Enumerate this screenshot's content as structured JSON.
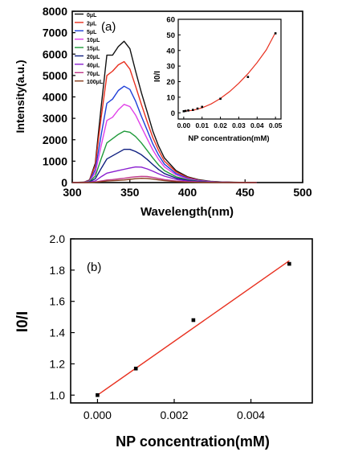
{
  "chart_data": [
    {
      "id": "a",
      "type": "line",
      "panel_label": "(a)",
      "xlabel": "Wavelength(nm)",
      "ylabel": "Intensity(a.u.)",
      "xlim": [
        300,
        500
      ],
      "ylim": [
        0,
        8000
      ],
      "x_ticks": [
        "300",
        "350",
        "400",
        "450",
        "500"
      ],
      "y_ticks": [
        "0",
        "1000",
        "2000",
        "3000",
        "4000",
        "5000",
        "6000",
        "7000",
        "8000"
      ],
      "legend_position": "top-left",
      "x": [
        300,
        310,
        315,
        320,
        325,
        330,
        335,
        340,
        345,
        350,
        355,
        360,
        365,
        370,
        375,
        380,
        390,
        400,
        410,
        420,
        430,
        440,
        450,
        460
      ],
      "series": [
        {
          "name": "0μL",
          "color": "#111111",
          "values": [
            0,
            20,
            120,
            900,
            3500,
            5950,
            5950,
            6350,
            6600,
            6250,
            5200,
            4200,
            3300,
            2400,
            1700,
            1150,
            560,
            270,
            130,
            60,
            30,
            15,
            6,
            0
          ]
        },
        {
          "name": "2μL",
          "color": "#e8301f",
          "values": [
            0,
            15,
            100,
            800,
            3000,
            5000,
            5200,
            5500,
            5650,
            5300,
            4500,
            3650,
            2850,
            2100,
            1500,
            1000,
            500,
            240,
            110,
            50,
            25,
            12,
            5,
            0
          ]
        },
        {
          "name": "5μL",
          "color": "#1f3fd8",
          "values": [
            0,
            12,
            80,
            600,
            2200,
            3700,
            3900,
            4300,
            4500,
            4350,
            3800,
            3100,
            2450,
            1800,
            1280,
            860,
            420,
            200,
            95,
            45,
            22,
            10,
            4,
            0
          ]
        },
        {
          "name": "10μL",
          "color": "#e040e8",
          "values": [
            0,
            10,
            60,
            450,
            1700,
            2900,
            3050,
            3400,
            3650,
            3550,
            3150,
            2600,
            2050,
            1520,
            1080,
            730,
            360,
            170,
            80,
            38,
            18,
            8,
            3,
            0
          ]
        },
        {
          "name": "15μL",
          "color": "#1f9a3a",
          "values": [
            0,
            8,
            40,
            300,
            1100,
            1850,
            2050,
            2250,
            2400,
            2350,
            2150,
            1850,
            1500,
            1150,
            820,
            560,
            270,
            130,
            60,
            28,
            14,
            6,
            2,
            0
          ]
        },
        {
          "name": "20μL",
          "color": "#0f1f80",
          "values": [
            0,
            5,
            25,
            180,
            650,
            1100,
            1250,
            1400,
            1550,
            1550,
            1450,
            1300,
            1080,
            840,
            610,
            420,
            210,
            100,
            47,
            22,
            10,
            4,
            2,
            0
          ]
        },
        {
          "name": "40μL",
          "color": "#8a1fd0",
          "values": [
            0,
            3,
            12,
            80,
            270,
            440,
            500,
            560,
            620,
            680,
            730,
            720,
            640,
            530,
            410,
            300,
            150,
            72,
            34,
            16,
            8,
            3,
            1,
            0
          ]
        },
        {
          "name": "70μL",
          "color": "#c0398a",
          "values": [
            0,
            1,
            5,
            25,
            70,
            120,
            140,
            170,
            200,
            240,
            270,
            290,
            280,
            240,
            190,
            140,
            70,
            35,
            16,
            8,
            4,
            2,
            1,
            0
          ]
        },
        {
          "name": "100μL",
          "color": "#8a3f1f",
          "values": [
            0,
            1,
            3,
            15,
            40,
            70,
            85,
            100,
            120,
            150,
            180,
            200,
            190,
            160,
            125,
            90,
            45,
            22,
            10,
            5,
            2,
            1,
            0,
            0
          ]
        }
      ]
    },
    {
      "id": "a-inset",
      "type": "scatter",
      "xlabel": "NP concentration(mM)",
      "ylabel": "I0/I",
      "xlim": [
        -0.003,
        0.053
      ],
      "ylim": [
        -4,
        60
      ],
      "x_ticks": [
        "0.00",
        "0.01",
        "0.02",
        "0.03",
        "0.04",
        "0.05"
      ],
      "x_tick_values": [
        0.0,
        0.01,
        0.02,
        0.03,
        0.04,
        0.05
      ],
      "y_ticks": [
        "0",
        "10",
        "20",
        "30",
        "40",
        "50",
        "60"
      ],
      "y_tick_values": [
        0,
        10,
        20,
        30,
        40,
        50,
        60
      ],
      "points": {
        "x": [
          0,
          0.001,
          0.0025,
          0.005,
          0.0075,
          0.01,
          0.02,
          0.035,
          0.05
        ],
        "y": [
          1,
          1.2,
          1.5,
          1.85,
          2.7,
          3.8,
          9,
          23,
          51
        ]
      },
      "fit": {
        "color": "#e8301f",
        "x": [
          0,
          0.005,
          0.01,
          0.015,
          0.02,
          0.025,
          0.03,
          0.035,
          0.04,
          0.045,
          0.05
        ],
        "y": [
          1,
          1.6,
          3.2,
          5.7,
          9.2,
          13.6,
          18.9,
          25.1,
          32.3,
          40.4,
          51.5
        ]
      }
    },
    {
      "id": "b",
      "type": "scatter",
      "panel_label": "(b)",
      "xlabel": "NP concentration(mM)",
      "ylabel": "I0/I",
      "xlim": [
        -0.0007,
        0.0056
      ],
      "ylim": [
        0.95,
        2.0
      ],
      "x_ticks": [
        "0.000",
        "0.002",
        "0.004"
      ],
      "x_tick_values": [
        0,
        0.002,
        0.004
      ],
      "y_ticks": [
        "1.0",
        "1.2",
        "1.4",
        "1.6",
        "1.8",
        "2.0"
      ],
      "y_tick_values": [
        1.0,
        1.2,
        1.4,
        1.6,
        1.8,
        2.0
      ],
      "points": {
        "x": [
          0,
          0.001,
          0.0025,
          0.005
        ],
        "y": [
          1.0,
          1.17,
          1.48,
          1.84
        ]
      },
      "fit": {
        "color": "#e8301f",
        "x": [
          0,
          0.005
        ],
        "y": [
          1.0,
          1.86
        ]
      }
    }
  ]
}
